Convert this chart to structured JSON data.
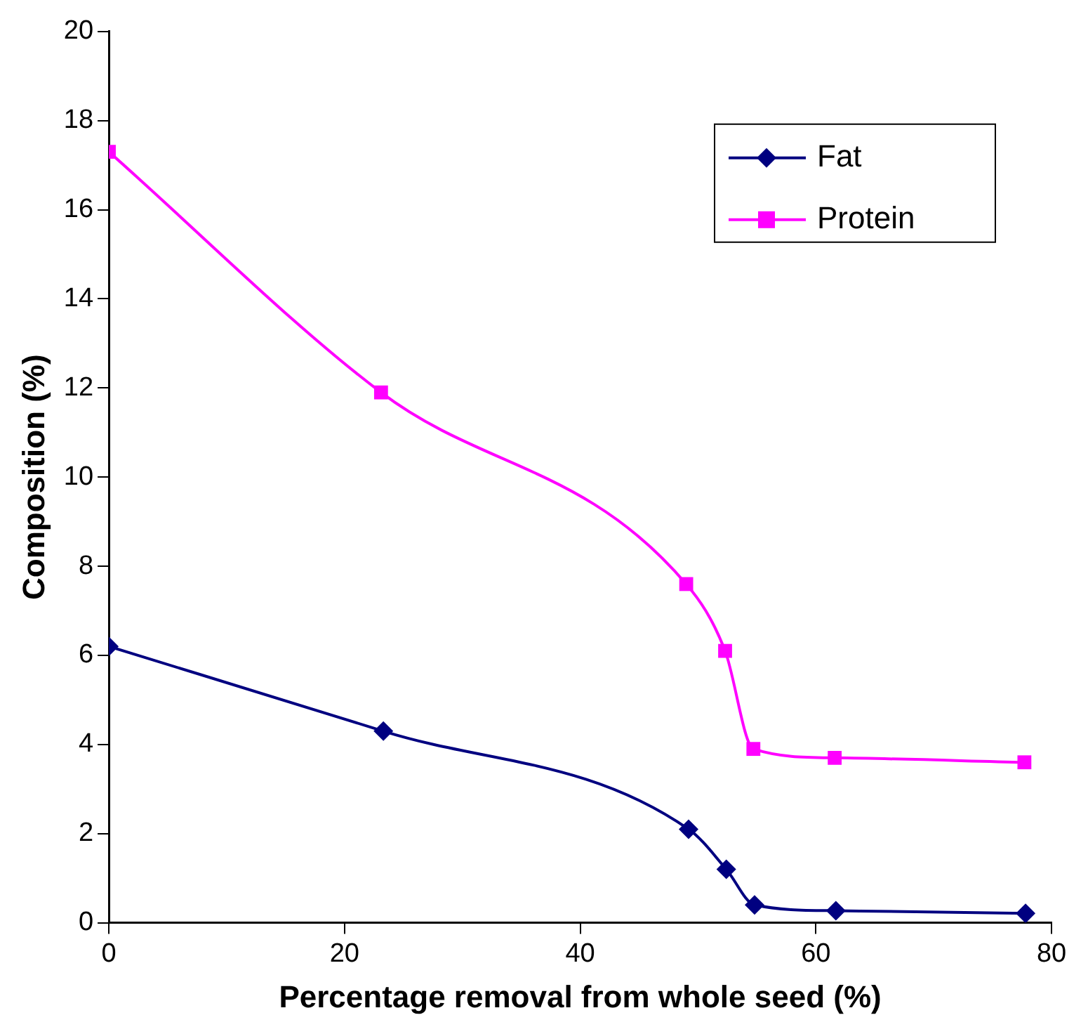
{
  "chart_data": {
    "type": "line",
    "xlabel": "Percentage removal from whole seed (%)",
    "ylabel": "Composition (%)",
    "xlim": [
      0,
      80
    ],
    "xticks": [
      0,
      20,
      40,
      60,
      80
    ],
    "ylim": [
      0,
      20
    ],
    "yticks": [
      0,
      2,
      4,
      6,
      8,
      10,
      12,
      14,
      16,
      18,
      20
    ],
    "grid": false,
    "legend": "top right",
    "series": [
      {
        "name": "Fat",
        "color": "#000080",
        "marker": "diamond",
        "x": [
          0,
          23.3,
          49.2,
          52.4,
          54.8,
          61.7,
          77.8
        ],
        "values": [
          6.2,
          4.3,
          2.1,
          1.2,
          0.4,
          0.27,
          0.21
        ]
      },
      {
        "name": "Protein",
        "color": "#ff00ff",
        "marker": "square",
        "x": [
          0,
          23.1,
          49.0,
          52.3,
          54.7,
          61.6,
          77.7
        ],
        "values": [
          17.3,
          11.9,
          7.6,
          6.1,
          3.9,
          3.7,
          3.6
        ]
      }
    ]
  }
}
